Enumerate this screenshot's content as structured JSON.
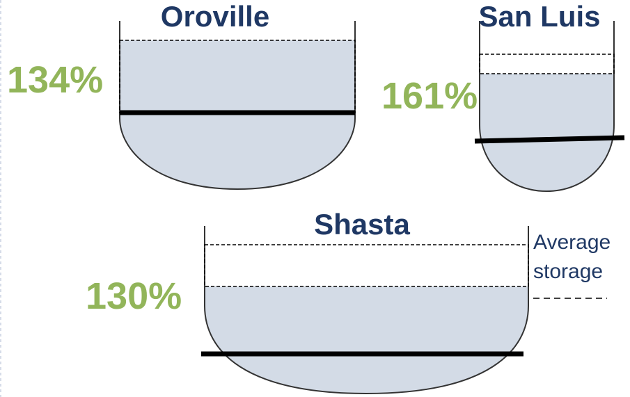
{
  "colors": {
    "water": "#d3dbe6",
    "outline": "#333333",
    "title": "#1f3864",
    "percent": "#92b55a",
    "avg_line": "#000000"
  },
  "reservoirs": [
    {
      "name": "Oroville",
      "percent": "134%",
      "percent_of_average": 134
    },
    {
      "name": "San Luis",
      "percent": "161%",
      "percent_of_average": 161
    },
    {
      "name": "Shasta",
      "percent": "130%",
      "percent_of_average": 130
    }
  ],
  "legend": {
    "line1": "Average",
    "line2": "storage"
  }
}
